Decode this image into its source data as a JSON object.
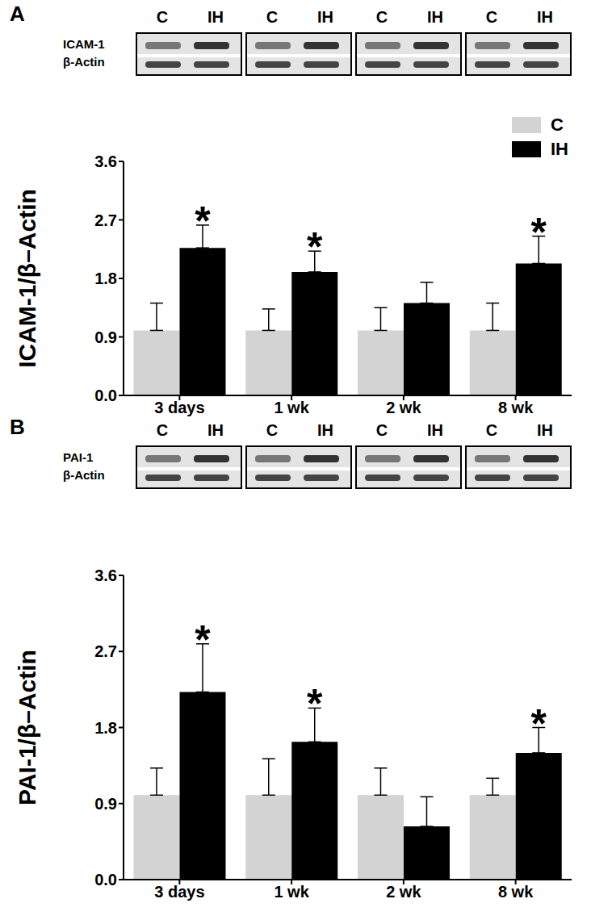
{
  "chart_data": [
    {
      "type": "bar",
      "panel_label": "A",
      "blot": {
        "lanes": [
          "C",
          "IH"
        ],
        "bands": [
          "ICAM-1",
          "β-Actin"
        ]
      },
      "ylabel": "ICAM-1/β–Actin",
      "categories": [
        "3 days",
        "1 wk",
        "2 wk",
        "8 wk"
      ],
      "series": [
        {
          "name": "C",
          "color": "#d3d3d3",
          "values": [
            1.0,
            1.0,
            1.0,
            1.0
          ],
          "errors": [
            0.42,
            0.33,
            0.35,
            0.42
          ]
        },
        {
          "name": "IH",
          "color": "#000000",
          "values": [
            2.27,
            1.9,
            1.42,
            2.03
          ],
          "errors": [
            0.35,
            0.32,
            0.32,
            0.42
          ]
        }
      ],
      "ylim": [
        0,
        3.6
      ],
      "yticks": [
        {
          "value": 0,
          "label": "0.0"
        },
        0.9,
        1.8,
        2.7,
        3.6
      ],
      "legend": "upper right",
      "annotations": [
        {
          "category": "3 days",
          "series": "IH",
          "text": "*"
        },
        {
          "category": "1 wk",
          "series": "IH",
          "text": "*"
        },
        {
          "category": "8 wk",
          "series": "IH",
          "text": "*"
        }
      ]
    },
    {
      "type": "bar",
      "panel_label": "B",
      "blot": {
        "lanes": [
          "C",
          "IH"
        ],
        "bands": [
          "PAI-1",
          "β-Actin"
        ]
      },
      "ylabel": "PAI-1/β–Actin",
      "categories": [
        "3 days",
        "1 wk",
        "2 wk",
        "8 wk"
      ],
      "series": [
        {
          "name": "C",
          "color": "#d3d3d3",
          "values": [
            1.0,
            1.0,
            1.0,
            1.0
          ],
          "errors": [
            0.32,
            0.43,
            0.32,
            0.2
          ]
        },
        {
          "name": "IH",
          "color": "#000000",
          "values": [
            2.22,
            1.63,
            0.63,
            1.5
          ],
          "errors": [
            0.57,
            0.4,
            0.35,
            0.3
          ]
        }
      ],
      "ylim": [
        0,
        3.6
      ],
      "yticks": [
        {
          "value": 0,
          "label": "0.0"
        },
        0.9,
        1.8,
        2.7,
        3.6
      ],
      "annotations": [
        {
          "category": "3 days",
          "series": "IH",
          "text": "*"
        },
        {
          "category": "1 wk",
          "series": "IH",
          "text": "*"
        },
        {
          "category": "8 wk",
          "series": "IH",
          "text": "*"
        }
      ]
    }
  ]
}
